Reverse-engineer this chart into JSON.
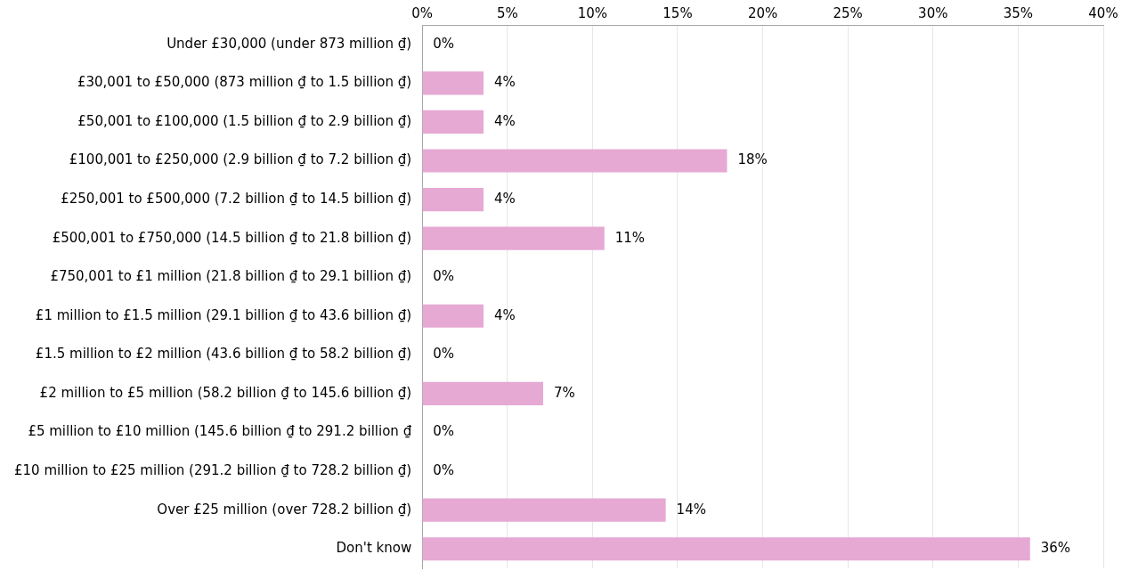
{
  "chart_data": {
    "type": "bar",
    "orientation": "horizontal",
    "categories": [
      "Under £30,000 (under 873 million ₫)",
      "£30,001 to £50,000 (873 million ₫ to 1.5 billion ₫)",
      "£50,001 to £100,000 (1.5 billion ₫ to 2.9 billion ₫)",
      "£100,001 to £250,000 (2.9 billion ₫ to 7.2 billion ₫)",
      "£250,001 to £500,000 (7.2 billion ₫ to 14.5 billion ₫)",
      "£500,001 to £750,000 (14.5 billion ₫ to 21.8 billion ₫)",
      "£750,001 to £1 million (21.8 billion ₫ to 29.1 billion ₫)",
      "£1 million to £1.5 million (29.1 billion ₫ to 43.6 billion ₫)",
      "£1.5 million to £2 million (43.6 billion ₫ to 58.2 billion ₫)",
      "£2 million to £5 million (58.2 billion ₫ to 145.6 billion ₫)",
      "£5 million to £10 million (145.6 billion ₫ to 291.2 billion ₫",
      "£10 million to £25 million (291.2 billion ₫ to 728.2 billion ₫)",
      "Over £25 million (over 728.2 billion ₫)",
      "Don't know"
    ],
    "values": [
      0,
      3.6,
      3.6,
      17.9,
      3.6,
      10.7,
      0,
      3.6,
      0,
      7.1,
      0,
      0,
      14.3,
      35.7
    ],
    "value_labels": [
      "0%",
      "4%",
      "4%",
      "18%",
      "4%",
      "11%",
      "0%",
      "4%",
      "0%",
      "7%",
      "0%",
      "0%",
      "14%",
      "36%"
    ],
    "color": "#e6a9d3",
    "xlim": [
      0,
      40
    ],
    "xticks": [
      {
        "value": 0,
        "label": "0%"
      },
      {
        "value": 5,
        "label": "5%"
      },
      {
        "value": 10,
        "label": "10%"
      },
      {
        "value": 15,
        "label": "15%"
      },
      {
        "value": 20,
        "label": "20%"
      },
      {
        "value": 25,
        "label": "25%"
      },
      {
        "value": 30,
        "label": "30%"
      },
      {
        "value": 35,
        "label": "35%"
      },
      {
        "value": 40,
        "label": "40%"
      }
    ],
    "grid": "x"
  }
}
